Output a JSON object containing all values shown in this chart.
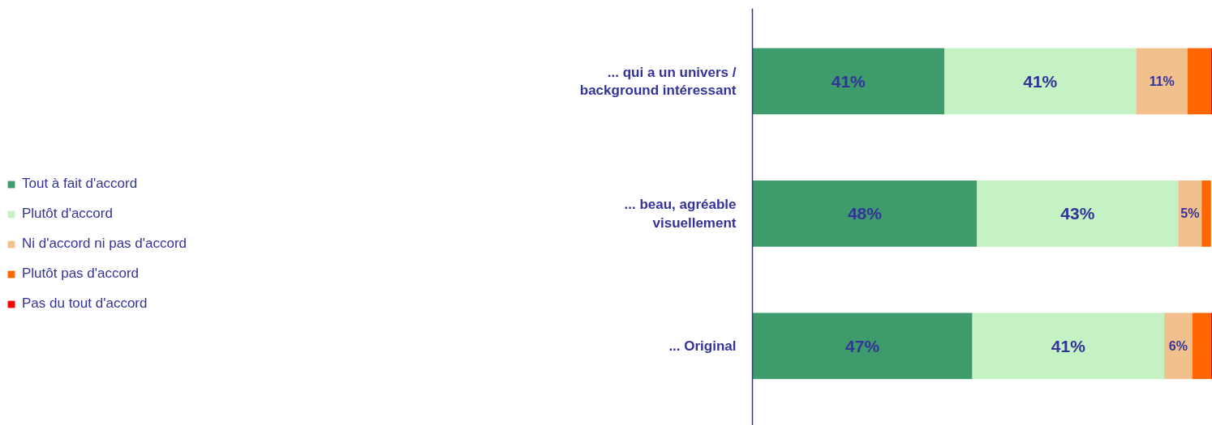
{
  "chart_data": {
    "type": "bar",
    "orientation": "horizontal",
    "stacked": true,
    "legend": "left",
    "grid": false,
    "categories": [
      "... qui a un univers / background intéressant",
      "... beau, agréable visuellement",
      "... Original"
    ],
    "series": [
      {
        "name": "Tout à fait d'accord",
        "color": "#3d9b6c",
        "values": [
          41,
          48,
          47
        ],
        "value_labels": [
          "41%",
          "48%",
          "47%"
        ]
      },
      {
        "name": "Plutôt d'accord",
        "color": "#c4f2c4",
        "values": [
          41,
          43,
          41
        ],
        "value_labels": [
          "41%",
          "43%",
          "41%"
        ]
      },
      {
        "name": "Ni d'accord ni pas d'accord",
        "color": "#f2c08c",
        "values": [
          11,
          5,
          6
        ],
        "value_labels": [
          "11%",
          "5%",
          "6%"
        ]
      },
      {
        "name": "Plutôt pas d'accord",
        "color": "#ff6600",
        "values": [
          5,
          2,
          4
        ],
        "value_labels": [
          null,
          null,
          null
        ]
      },
      {
        "name": "Pas du tout d'accord",
        "color": "#ff0000",
        "values": [
          0.3,
          0,
          0.3
        ],
        "value_labels": [
          null,
          null,
          null
        ]
      }
    ]
  }
}
